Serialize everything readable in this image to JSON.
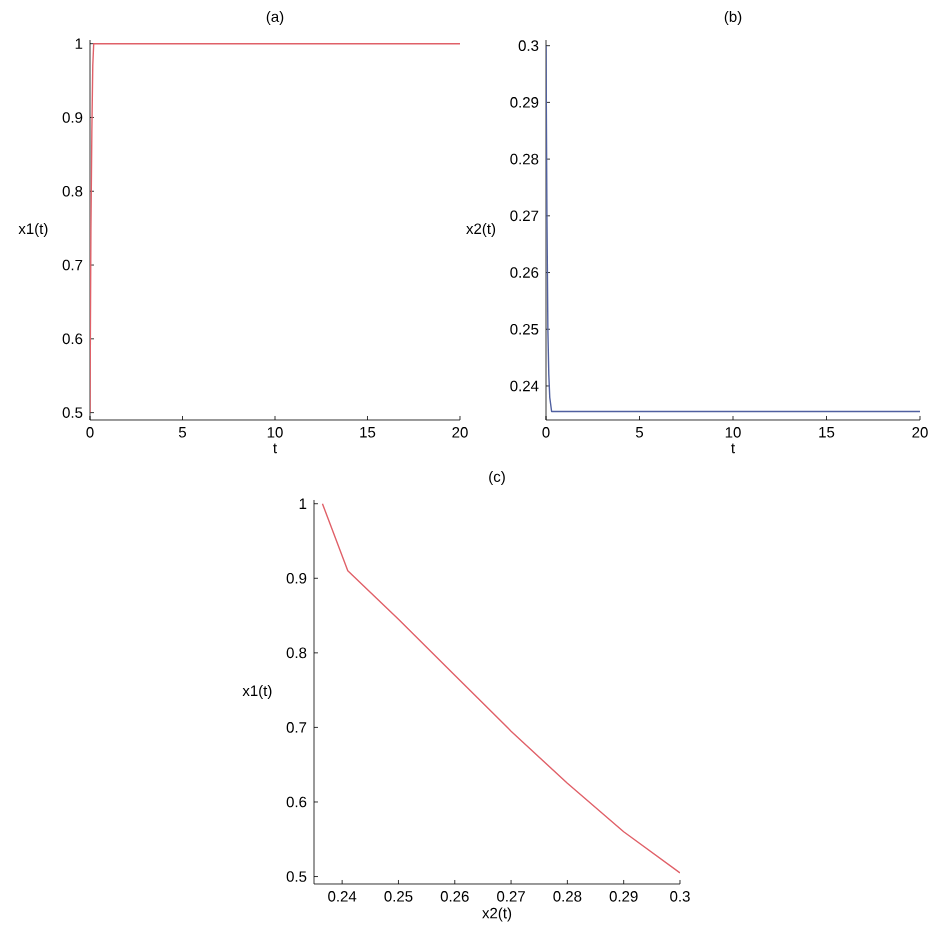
{
  "chart_data": [
    {
      "type": "line",
      "title": "(a)",
      "xlabel": "t",
      "ylabel": "x1(t)",
      "xlim": [
        0,
        20
      ],
      "ylim": [
        0.49,
        1.005
      ],
      "xticks": [
        0,
        5,
        10,
        15,
        20
      ],
      "yticks": [
        0.5,
        0.6,
        0.7,
        0.8,
        0.9,
        1
      ],
      "x": [
        0,
        0.02,
        0.05,
        0.1,
        0.15,
        0.2,
        20
      ],
      "series": [
        {
          "color": "#e06068",
          "values": [
            0.5,
            0.6,
            0.75,
            0.88,
            0.97,
            1,
            1
          ]
        }
      ]
    },
    {
      "type": "line",
      "title": "(b)",
      "xlabel": "t",
      "ylabel": "x2(t)",
      "xlim": [
        0,
        20
      ],
      "ylim": [
        0.234,
        0.301
      ],
      "xticks": [
        0,
        5,
        10,
        15,
        20
      ],
      "yticks": [
        0.24,
        0.25,
        0.26,
        0.27,
        0.28,
        0.29,
        0.3
      ],
      "x": [
        0,
        0.05,
        0.1,
        0.15,
        0.2,
        0.3,
        20
      ],
      "series": [
        {
          "color": "#5060a0",
          "values": [
            0.3,
            0.27,
            0.25,
            0.242,
            0.238,
            0.2355,
            0.2355
          ]
        }
      ]
    },
    {
      "type": "line",
      "title": "(c)",
      "xlabel": "x2(t)",
      "ylabel": "x1(t)",
      "xlim": [
        0.235,
        0.3
      ],
      "ylim": [
        0.49,
        1.005
      ],
      "xticks": [
        0.24,
        0.25,
        0.26,
        0.27,
        0.28,
        0.29,
        0.3
      ],
      "yticks": [
        0.5,
        0.6,
        0.7,
        0.8,
        0.9,
        1
      ],
      "x": [
        0.2365,
        0.241,
        0.25,
        0.26,
        0.27,
        0.28,
        0.29,
        0.3
      ],
      "series": [
        {
          "color": "#e06068",
          "values": [
            1,
            0.91,
            0.845,
            0.77,
            0.695,
            0.625,
            0.56,
            0.505
          ]
        }
      ]
    }
  ]
}
